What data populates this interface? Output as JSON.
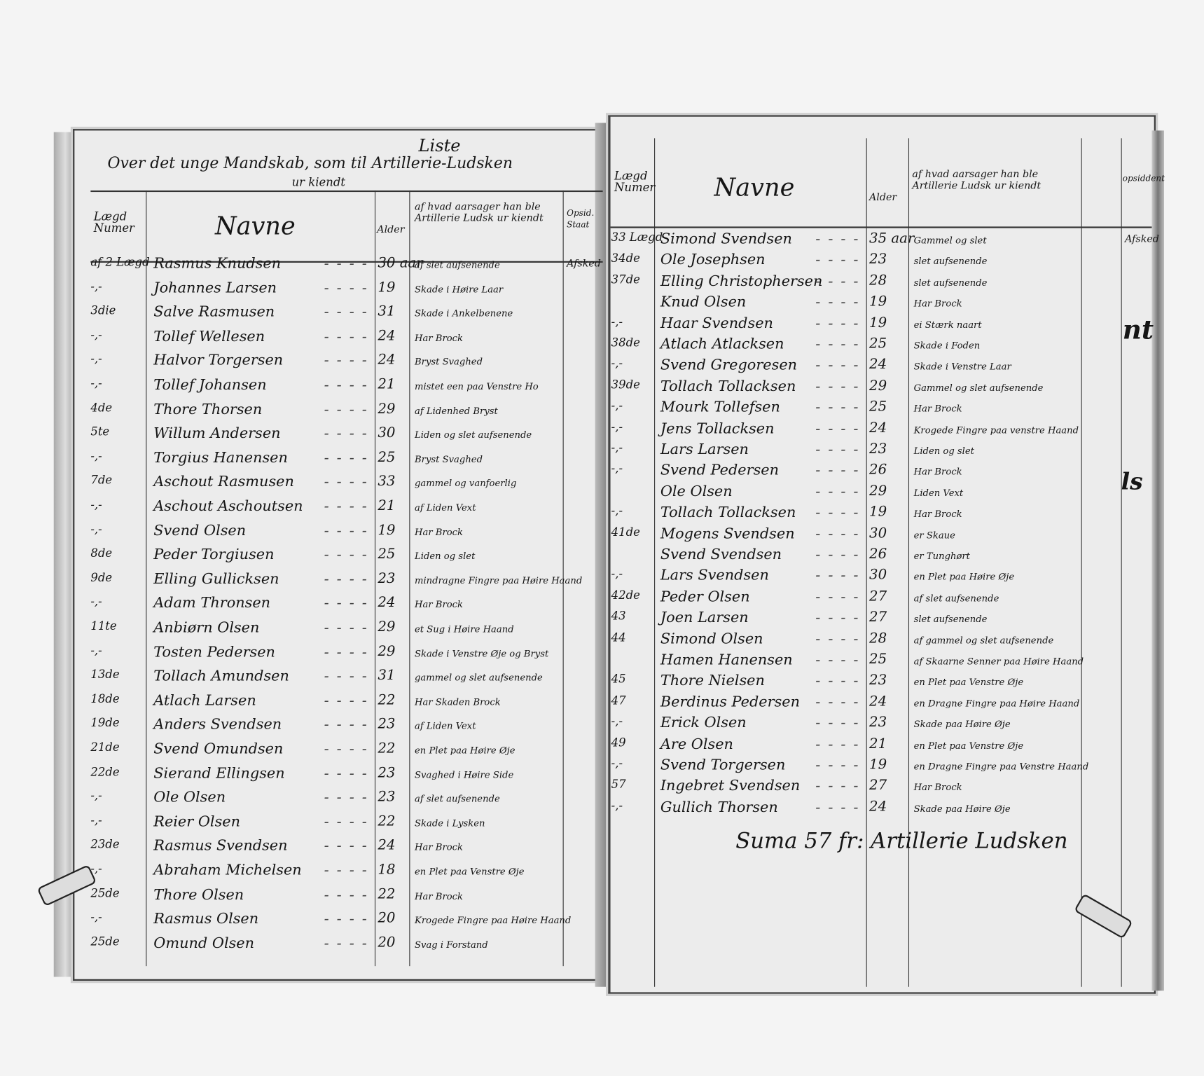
{
  "left_page": {
    "title_top": "Liste",
    "title_main": "Over det unge Mandskab, som til Artillerie-Ludsken",
    "title_sub": "ur kiendt",
    "headers": {
      "lagd": "Lægd Numer",
      "navne": "Navne",
      "alder": "Alder",
      "cause": "af hvad aarsager han ble Artillerie Ludsk ur kiendt",
      "opsid": "Opsid. Staat"
    },
    "rows": [
      {
        "lagd": "af 2 Lægd",
        "name": "Rasmus Knudsen",
        "age": "30 aar",
        "cause": "af slet aufsenende",
        "opsid": "Afsked"
      },
      {
        "lagd": "-,-",
        "name": "Johannes Larsen",
        "age": "19",
        "cause": "Skade i Høire Laar",
        "opsid": ""
      },
      {
        "lagd": "3die",
        "name": "Salve Rasmusen",
        "age": "31",
        "cause": "Skade i Ankelbenene",
        "opsid": ""
      },
      {
        "lagd": "-,-",
        "name": "Tollef Wellesen",
        "age": "24",
        "cause": "Har Brock",
        "opsid": ""
      },
      {
        "lagd": "-,-",
        "name": "Halvor Torgersen",
        "age": "24",
        "cause": "Bryst Svaghed",
        "opsid": ""
      },
      {
        "lagd": "-,-",
        "name": "Tollef Johansen",
        "age": "21",
        "cause": "mistet een paa Venstre Ho",
        "opsid": ""
      },
      {
        "lagd": "4de",
        "name": "Thore Thorsen",
        "age": "29",
        "cause": "af Lidenhed Bryst",
        "opsid": ""
      },
      {
        "lagd": "5te",
        "name": "Willum Andersen",
        "age": "30",
        "cause": "Liden og slet aufsenende",
        "opsid": ""
      },
      {
        "lagd": "-,-",
        "name": "Torgius Hanensen",
        "age": "25",
        "cause": "Bryst Svaghed",
        "opsid": ""
      },
      {
        "lagd": "7de",
        "name": "Aschout Rasmusen",
        "age": "33",
        "cause": "gammel og vanfoerlig",
        "opsid": ""
      },
      {
        "lagd": "-,-",
        "name": "Aschout Aschoutsen",
        "age": "21",
        "cause": "af Liden Vext",
        "opsid": ""
      },
      {
        "lagd": "-,-",
        "name": "Svend Olsen",
        "age": "19",
        "cause": "Har Brock",
        "opsid": ""
      },
      {
        "lagd": "8de",
        "name": "Peder Torgiusen",
        "age": "25",
        "cause": "Liden og slet",
        "opsid": ""
      },
      {
        "lagd": "9de",
        "name": "Elling Gullicksen",
        "age": "23",
        "cause": "mindragne Fingre paa Høire Haand",
        "opsid": ""
      },
      {
        "lagd": "-,-",
        "name": "Adam Thronsen",
        "age": "24",
        "cause": "Har Brock",
        "opsid": ""
      },
      {
        "lagd": "11te",
        "name": "Anbiørn Olsen",
        "age": "29",
        "cause": "et Sug i Høire Haand",
        "opsid": ""
      },
      {
        "lagd": "-,-",
        "name": "Tosten Pedersen",
        "age": "29",
        "cause": "Skade i Venstre Øje og Bryst",
        "opsid": ""
      },
      {
        "lagd": "13de",
        "name": "Tollach Amundsen",
        "age": "31",
        "cause": "gammel og slet aufsenende",
        "opsid": ""
      },
      {
        "lagd": "18de",
        "name": "Atlach Larsen",
        "age": "22",
        "cause": "Har Skaden Brock",
        "opsid": ""
      },
      {
        "lagd": "19de",
        "name": "Anders Svendsen",
        "age": "23",
        "cause": "af Liden Vext",
        "opsid": ""
      },
      {
        "lagd": "21de",
        "name": "Svend Omundsen",
        "age": "22",
        "cause": "en Plet paa Høire Øje",
        "opsid": ""
      },
      {
        "lagd": "22de",
        "name": "Sierand Ellingsen",
        "age": "23",
        "cause": "Svaghed i Høire Side",
        "opsid": ""
      },
      {
        "lagd": "-,-",
        "name": "Ole Olsen",
        "age": "23",
        "cause": "af slet aufsenende",
        "opsid": ""
      },
      {
        "lagd": "-,-",
        "name": "Reier Olsen",
        "age": "22",
        "cause": "Skade i Lysken",
        "opsid": ""
      },
      {
        "lagd": "23de",
        "name": "Rasmus Svendsen",
        "age": "24",
        "cause": "Har Brock",
        "opsid": ""
      },
      {
        "lagd": "-,-",
        "name": "Abraham Michelsen",
        "age": "18",
        "cause": "en Plet paa Venstre Øje",
        "opsid": ""
      },
      {
        "lagd": "25de",
        "name": "Thore Olsen",
        "age": "22",
        "cause": "Har Brock",
        "opsid": ""
      },
      {
        "lagd": "-,-",
        "name": "Rasmus Olsen",
        "age": "20",
        "cause": "Krogede Fingre paa Høire Haand",
        "opsid": ""
      },
      {
        "lagd": "25de",
        "name": "Omund Olsen",
        "age": "20",
        "cause": "Svag i Forstand",
        "opsid": ""
      }
    ]
  },
  "right_page": {
    "headers": {
      "lagd": "Lægd Numer",
      "navne": "Navne",
      "alder": "Alder",
      "cause": "af hvad aarsager han ble Artillerie Ludsk ur kiendt",
      "opsid": "opsiddent"
    },
    "rows": [
      {
        "lagd": "33 Lægd",
        "name": "Simond Svendsen",
        "age": "35 aar",
        "cause": "Gammel og slet",
        "opsid": "Afsked"
      },
      {
        "lagd": "34de",
        "name": "Ole Josephsen",
        "age": "23",
        "cause": "slet aufsenende",
        "opsid": ""
      },
      {
        "lagd": "37de",
        "name": "Elling Christophersen",
        "age": "28",
        "cause": "slet aufsenende",
        "opsid": ""
      },
      {
        "lagd": "",
        "name": "Knud Olsen",
        "age": "19",
        "cause": "Har Brock",
        "opsid": ""
      },
      {
        "lagd": "-,-",
        "name": "Haar Svendsen",
        "age": "19",
        "cause": "ei Stærk naart",
        "opsid": ""
      },
      {
        "lagd": "38de",
        "name": "Atlach Atlacksen",
        "age": "25",
        "cause": "Skade i Foden",
        "opsid": ""
      },
      {
        "lagd": "-,-",
        "name": "Svend Gregoresen",
        "age": "24",
        "cause": "Skade i Venstre Laar",
        "opsid": ""
      },
      {
        "lagd": "39de",
        "name": "Tollach Tollacksen",
        "age": "29",
        "cause": "Gammel og slet aufsenende",
        "opsid": ""
      },
      {
        "lagd": "-,-",
        "name": "Mourk Tollefsen",
        "age": "25",
        "cause": "Har Brock",
        "opsid": ""
      },
      {
        "lagd": "-,-",
        "name": "Jens Tollacksen",
        "age": "24",
        "cause": "Krogede Fingre paa venstre Haand",
        "opsid": ""
      },
      {
        "lagd": "-,-",
        "name": "Lars Larsen",
        "age": "23",
        "cause": "Liden og slet",
        "opsid": ""
      },
      {
        "lagd": "-,-",
        "name": "Svend Pedersen",
        "age": "26",
        "cause": "Har Brock",
        "opsid": ""
      },
      {
        "lagd": "",
        "name": "Ole Olsen",
        "age": "29",
        "cause": "Liden Vext",
        "opsid": ""
      },
      {
        "lagd": "-,-",
        "name": "Tollach Tollacksen",
        "age": "19",
        "cause": "Har Brock",
        "opsid": ""
      },
      {
        "lagd": "41de",
        "name": "Mogens Svendsen",
        "age": "30",
        "cause": "er Skaue",
        "opsid": ""
      },
      {
        "lagd": "",
        "name": "Svend Svendsen",
        "age": "26",
        "cause": "er Tunghørt",
        "opsid": ""
      },
      {
        "lagd": "-,-",
        "name": "Lars Svendsen",
        "age": "30",
        "cause": "en Plet paa Høire Øje",
        "opsid": ""
      },
      {
        "lagd": "42de",
        "name": "Peder Olsen",
        "age": "27",
        "cause": "af slet aufsenende",
        "opsid": ""
      },
      {
        "lagd": "43",
        "name": "Joen Larsen",
        "age": "27",
        "cause": "slet aufsenende",
        "opsid": ""
      },
      {
        "lagd": "44",
        "name": "Simond Olsen",
        "age": "28",
        "cause": "af gammel og slet aufsenende",
        "opsid": ""
      },
      {
        "lagd": "",
        "name": "Hamen Hanensen",
        "age": "25",
        "cause": "af Skaarne Senner paa Høire Haand",
        "opsid": ""
      },
      {
        "lagd": "45",
        "name": "Thore Nielsen",
        "age": "23",
        "cause": "en Plet paa Venstre Øje",
        "opsid": ""
      },
      {
        "lagd": "47",
        "name": "Berdinus Pedersen",
        "age": "24",
        "cause": "en Dragne Fingre paa Høire Haand",
        "opsid": ""
      },
      {
        "lagd": "-,-",
        "name": "Erick Olsen",
        "age": "23",
        "cause": "Skade paa Høire Øje",
        "opsid": ""
      },
      {
        "lagd": "49",
        "name": "Are Olsen",
        "age": "21",
        "cause": "en Plet paa Venstre Øje",
        "opsid": ""
      },
      {
        "lagd": "-,-",
        "name": "Svend Torgersen",
        "age": "19",
        "cause": "en Dragne Fingre paa Venstre Haand",
        "opsid": ""
      },
      {
        "lagd": "57",
        "name": "Ingebret Svendsen",
        "age": "27",
        "cause": "Har Brock",
        "opsid": ""
      },
      {
        "lagd": "-,-",
        "name": "Gullich Thorsen",
        "age": "24",
        "cause": "Skade paa Høire Øje",
        "opsid": ""
      }
    ],
    "total": "Suma 57 fr: Artillerie Ludsken"
  },
  "margin_marks": [
    "nt",
    "ls"
  ]
}
